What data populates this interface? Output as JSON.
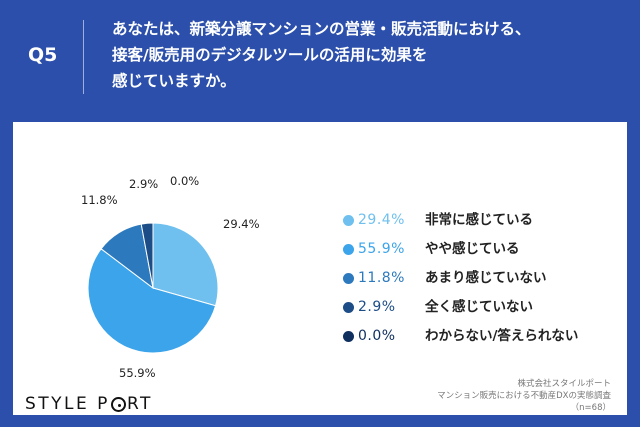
{
  "header": {
    "qnum": "Q5",
    "question_lines": [
      "あなたは、新築分譲マンションの営業・販売活動における、",
      "接客/販売用のデジタルツールの活用に効果を",
      "感じていますか。"
    ]
  },
  "chart_data": {
    "type": "pie",
    "start": "12 o'clock",
    "direction": "clockwise",
    "slices": [
      {
        "label": "非常に感じている",
        "value": 29.4,
        "display": "29.4%",
        "color": "#6fc0ee"
      },
      {
        "label": "やや感じている",
        "value": 55.9,
        "display": "55.9%",
        "color": "#3ca4ea"
      },
      {
        "label": "あまり感じていない",
        "value": 11.8,
        "display": "11.8%",
        "color": "#2d79bd"
      },
      {
        "label": "全く感じていない",
        "value": 2.9,
        "display": "2.9%",
        "color": "#1c4d86"
      },
      {
        "label": "わからない/答えられない",
        "value": 0.0,
        "display": "0.0%",
        "color": "#0f2f5e"
      }
    ]
  },
  "footer": {
    "logo": "STYLE PORT",
    "source_lines": [
      "株式会社スタイルポート",
      "マンション販売における不動産DXの実態調査",
      "（n=68）"
    ]
  }
}
